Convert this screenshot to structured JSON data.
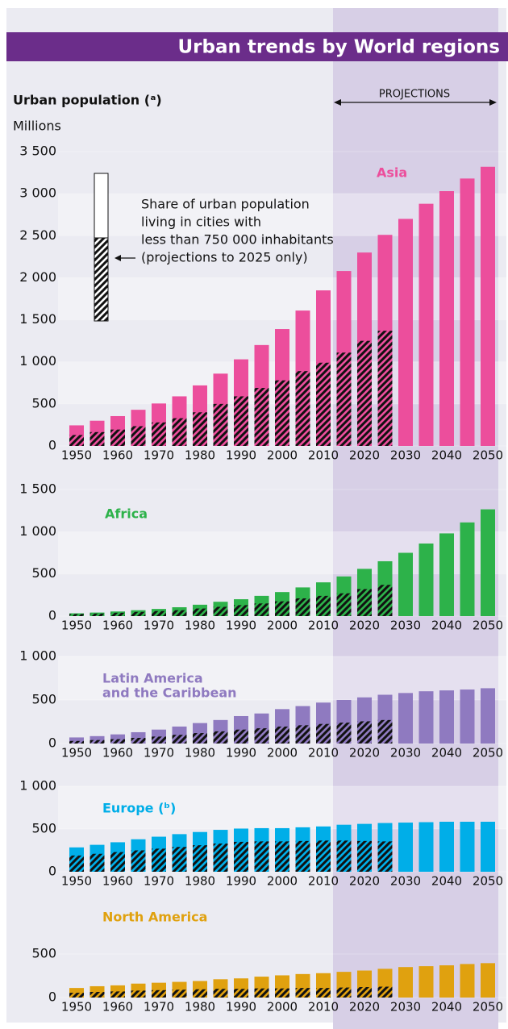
{
  "title": "Urban trends by World regions",
  "y_label": "Urban population (ᵃ)",
  "unit": "Millions",
  "projections_label": "PROJECTIONS",
  "note": [
    "Share of urban population",
    "living in cities with",
    "less than 750 000 inhabitants",
    "(projections to 2025 only)"
  ],
  "chart_data": [
    {
      "type": "bar",
      "title": [
        "Asia"
      ],
      "categories": [
        1950,
        null,
        1960,
        null,
        1970,
        null,
        1980,
        null,
        1990,
        null,
        2000,
        null,
        2010,
        null,
        2020,
        null,
        2030,
        null,
        2040,
        null,
        2050
      ],
      "series": [
        {
          "color": "#ec4e9c",
          "values": [
            245,
            300,
            355,
            430,
            505,
            590,
            720,
            860,
            1030,
            1200,
            1390,
            1610,
            1850,
            2080,
            2300,
            2510,
            2700,
            2880,
            3030,
            3180,
            3320
          ]
        },
        {
          "pattern": "hatch",
          "values": [
            130,
            165,
            195,
            235,
            280,
            330,
            400,
            500,
            590,
            690,
            780,
            890,
            990,
            1110,
            1250,
            1370,
            null,
            null,
            null,
            null,
            null
          ]
        }
      ],
      "ylim": [
        0,
        3500
      ],
      "yticks": [
        0,
        500,
        {
          "value": 1000,
          "label": "1 000"
        },
        {
          "value": 1500,
          "label": "1 500"
        },
        {
          "value": 2000,
          "label": "2 000"
        },
        {
          "value": 2500,
          "label": "2 500"
        },
        {
          "value": 3000,
          "label": "3 000"
        },
        {
          "value": 3500,
          "label": "3 500"
        }
      ]
    },
    {
      "type": "bar",
      "title": [
        "Africa"
      ],
      "categories": [
        1950,
        null,
        1960,
        null,
        1970,
        null,
        1980,
        null,
        1990,
        null,
        2000,
        null,
        2010,
        null,
        2020,
        null,
        2030,
        null,
        2040,
        null,
        2050
      ],
      "series": [
        {
          "color": "#2db24a",
          "values": [
            33,
            42,
            55,
            70,
            85,
            105,
            135,
            170,
            200,
            240,
            285,
            340,
            400,
            470,
            560,
            650,
            750,
            860,
            980,
            1110,
            1265
          ]
        },
        {
          "pattern": "hatch",
          "values": [
            25,
            30,
            40,
            50,
            60,
            70,
            90,
            110,
            130,
            150,
            175,
            210,
            240,
            270,
            320,
            370,
            null,
            null,
            null,
            null,
            null
          ]
        }
      ],
      "ylim": [
        0,
        1500
      ],
      "yticks": [
        0,
        500,
        {
          "value": 1000,
          "label": "1 000"
        },
        {
          "value": 1500,
          "label": "1 500"
        }
      ]
    },
    {
      "type": "bar",
      "title": [
        "Latin America",
        "and the Caribbean"
      ],
      "categories": [
        1950,
        null,
        1960,
        null,
        1970,
        null,
        1980,
        null,
        1990,
        null,
        2000,
        null,
        2010,
        null,
        2020,
        null,
        2030,
        null,
        2040,
        null,
        2050
      ],
      "series": [
        {
          "color": "#8f7ac0",
          "values": [
            70,
            85,
            105,
            130,
            160,
            195,
            235,
            270,
            315,
            345,
            395,
            430,
            470,
            500,
            530,
            560,
            580,
            600,
            610,
            620,
            635
          ]
        },
        {
          "pattern": "hatch",
          "values": [
            30,
            40,
            50,
            65,
            80,
            100,
            120,
            140,
            160,
            175,
            195,
            210,
            225,
            240,
            255,
            270,
            null,
            null,
            null,
            null,
            null
          ]
        }
      ],
      "ylim": [
        0,
        1000
      ],
      "yticks": [
        0,
        500,
        {
          "value": 1000,
          "label": "1 000"
        }
      ]
    },
    {
      "type": "bar",
      "title": [
        "Europe (ᵇ)"
      ],
      "categories": [
        1950,
        null,
        1960,
        null,
        1970,
        null,
        1980,
        null,
        1990,
        null,
        2000,
        null,
        2010,
        null,
        2020,
        null,
        2030,
        null,
        2040,
        null,
        2050
      ],
      "series": [
        {
          "color": "#00aee8",
          "values": [
            285,
            315,
            345,
            380,
            410,
            440,
            465,
            490,
            505,
            510,
            510,
            520,
            530,
            550,
            560,
            570,
            575,
            580,
            585,
            585,
            585
          ]
        },
        {
          "pattern": "hatch",
          "values": [
            190,
            210,
            230,
            250,
            270,
            290,
            310,
            330,
            350,
            355,
            355,
            360,
            365,
            365,
            360,
            355,
            null,
            null,
            null,
            null,
            null
          ]
        }
      ],
      "ylim": [
        0,
        1000
      ],
      "yticks": [
        0,
        500,
        {
          "value": 1000,
          "label": "1 000"
        }
      ]
    },
    {
      "type": "bar",
      "title": [
        "North America"
      ],
      "categories": [
        1950,
        null,
        1960,
        null,
        1970,
        null,
        1980,
        null,
        1990,
        null,
        2000,
        null,
        2010,
        null,
        2020,
        null,
        2030,
        null,
        2040,
        null,
        2050
      ],
      "series": [
        {
          "color": "#e0a10f",
          "values": [
            110,
            130,
            140,
            160,
            170,
            180,
            190,
            210,
            220,
            240,
            255,
            270,
            280,
            295,
            310,
            330,
            350,
            360,
            370,
            385,
            395
          ]
        },
        {
          "pattern": "hatch",
          "values": [
            55,
            65,
            70,
            80,
            85,
            90,
            95,
            100,
            100,
            105,
            105,
            110,
            110,
            115,
            120,
            125,
            null,
            null,
            null,
            null,
            null
          ]
        }
      ],
      "ylim": [
        0,
        500
      ],
      "yticks": [
        0,
        500
      ]
    }
  ]
}
